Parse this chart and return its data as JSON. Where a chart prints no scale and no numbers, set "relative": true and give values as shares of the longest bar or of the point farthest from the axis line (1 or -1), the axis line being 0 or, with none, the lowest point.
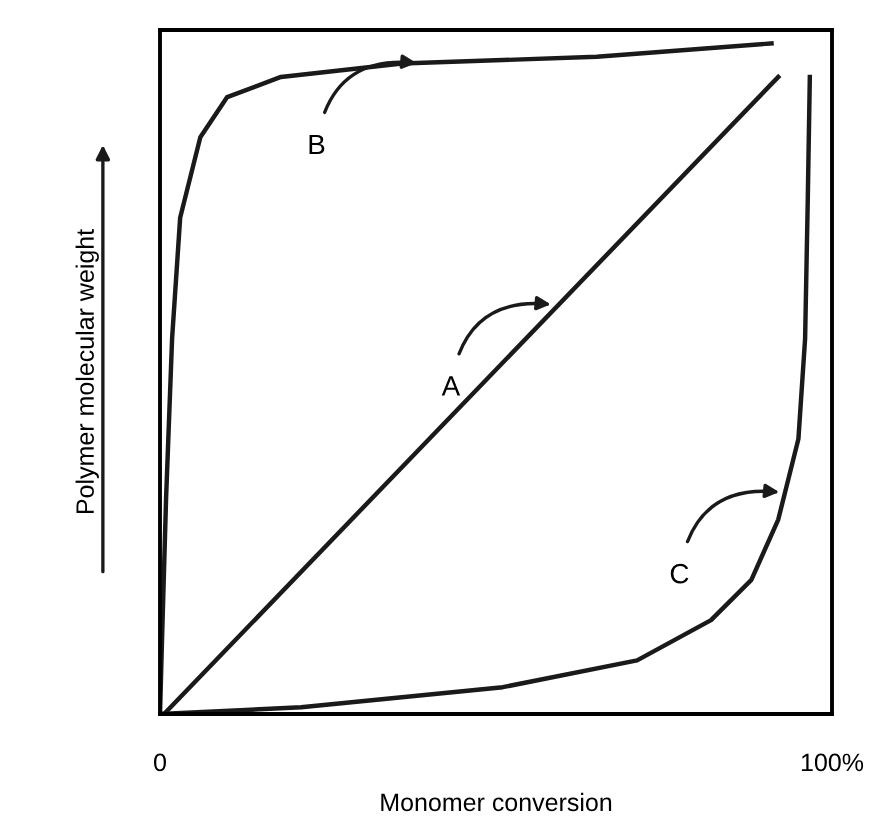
{
  "chart_data": {
    "type": "line",
    "relative": true,
    "xlabel": "Monomer conversion",
    "ylabel": "Polymer molecular weight",
    "xlim": [
      0,
      100
    ],
    "xticks": [
      0,
      {
        "value": 100,
        "label": "100%"
      }
    ],
    "legend": false,
    "marker": "none",
    "line_style": "solid",
    "series": [
      {
        "color": "#1a1a1a",
        "x": [
          0,
          0.6,
          92
        ],
        "values": [
          0,
          0,
          0.95
        ]
      },
      {
        "color": "#1a1a1a",
        "x": [
          0,
          0.3,
          0.9,
          1.8,
          3,
          6,
          10,
          18,
          36,
          65,
          91
        ],
        "values": [
          0,
          0.11,
          0.32,
          0.56,
          0.74,
          0.86,
          0.92,
          0.95,
          0.97,
          0.98,
          1
        ]
      },
      {
        "color": "#1a1a1a",
        "x": [
          0,
          21,
          51,
          71,
          82,
          88,
          92,
          95,
          96,
          96.4,
          96.7
        ],
        "values": [
          0,
          0.01,
          0.04,
          0.08,
          0.14,
          0.2,
          0.29,
          0.41,
          0.56,
          0.77,
          0.95
        ]
      }
    ],
    "annotations": [
      {
        "text": "A",
        "x": 59,
        "y": 0.61
      },
      {
        "text": "B",
        "x": 39,
        "y": 0.97
      },
      {
        "text": "C",
        "x": 93,
        "y": 0.33
      }
    ]
  }
}
